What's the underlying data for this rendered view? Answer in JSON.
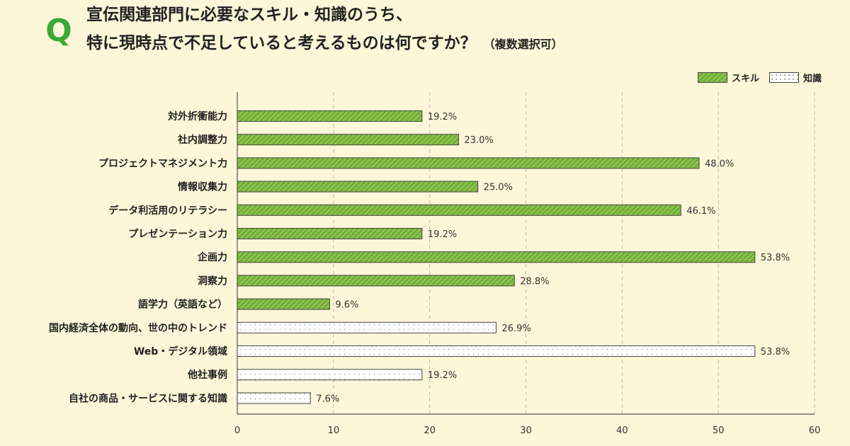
{
  "question": {
    "badge": "Q",
    "line1": "宣伝関連部門に必要なスキル・知識のうち、",
    "line2": "特に現時点で不足していると考えるものは何ですか？",
    "note": "（複数選択可）"
  },
  "legend": [
    {
      "label": "スキル",
      "pattern": "skill"
    },
    {
      "label": "知識",
      "pattern": "knowledge"
    }
  ],
  "colors": {
    "skill_fill": "#8bc34a",
    "skill_stripe": "#6aa33a",
    "knowledge_fill": "#ffffff",
    "accent": "#3aaa35"
  },
  "chart_data": {
    "type": "bar",
    "orientation": "horizontal",
    "categories": [
      "対外折衝能力",
      "社内調整力",
      "プロジェクトマネジメント力",
      "情報収集力",
      "データ利活用のリテラシー",
      "プレゼンテーション力",
      "企画力",
      "洞察力",
      "語学力（英語など）",
      "国内経済全体の動向、世の中のトレンド",
      "Web・デジタル領域",
      "他社事例",
      "自社の商品・サービスに関する知識"
    ],
    "values": [
      19.2,
      23.0,
      48.0,
      25.0,
      46.1,
      19.2,
      53.8,
      28.8,
      9.6,
      26.9,
      53.8,
      19.2,
      7.6
    ],
    "value_labels": [
      "19.2%",
      "23.0%",
      "48.0%",
      "25.0%",
      "46.1%",
      "19.2%",
      "53.8%",
      "28.8%",
      "9.6%",
      "26.9%",
      "53.8%",
      "19.2%",
      "7.6%"
    ],
    "group": [
      "スキル",
      "スキル",
      "スキル",
      "スキル",
      "スキル",
      "スキル",
      "スキル",
      "スキル",
      "スキル",
      "知識",
      "知識",
      "知識",
      "知識"
    ],
    "xlim": [
      0,
      60
    ],
    "xticks": [
      0,
      10,
      20,
      30,
      40,
      50,
      60
    ],
    "grid": true,
    "legend_position": "top-right"
  }
}
